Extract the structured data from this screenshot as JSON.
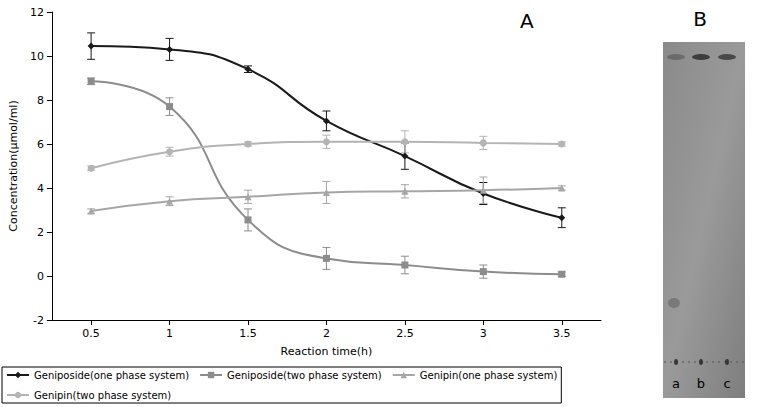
{
  "chart_data": {
    "type": "line",
    "title": "A",
    "x_label": "Reaction time(h)",
    "y_label": "Concentration(μmol/ml)",
    "categories": [
      "0.5",
      "1",
      "1.5",
      "2",
      "2.5",
      "3",
      "3.5"
    ],
    "ylim": [
      -2,
      12
    ],
    "yticks": [
      -2,
      0,
      2,
      4,
      6,
      8,
      10,
      12
    ],
    "grid": false,
    "legend": "bottom",
    "line_style": "smooth",
    "series": [
      {
        "name": "Geniposide(one phase system)",
        "color": "#1a1a1a",
        "marker": "diamond",
        "values": [
          10.45,
          10.3,
          9.4,
          7.05,
          5.45,
          3.75,
          2.65
        ],
        "errors": [
          0.6,
          0.5,
          0.15,
          0.45,
          0.6,
          0.5,
          0.45
        ]
      },
      {
        "name": "Geniposide(two phase system)",
        "color": "#8c8c8c",
        "marker": "square",
        "values": [
          8.85,
          7.7,
          2.55,
          0.8,
          0.5,
          0.2,
          0.08
        ],
        "errors": [
          0.15,
          0.4,
          0.5,
          0.5,
          0.4,
          0.3,
          0.1
        ]
      },
      {
        "name": "Genipin(one phase system)",
        "color": "#a6a6a6",
        "marker": "triangle",
        "values": [
          2.95,
          3.4,
          3.6,
          3.8,
          3.85,
          3.9,
          4.0
        ],
        "errors": [
          0.1,
          0.2,
          0.3,
          0.5,
          0.3,
          0.6,
          0.1
        ]
      },
      {
        "name": "Genipin(two phase system)",
        "color": "#b4b4b4",
        "marker": "circle",
        "values": [
          4.9,
          5.65,
          6.0,
          6.1,
          6.1,
          6.05,
          6.0
        ],
        "errors": [
          0.1,
          0.2,
          0.1,
          0.3,
          0.5,
          0.3,
          0.1
        ]
      }
    ]
  },
  "image": {
    "label": "B",
    "lanes": [
      "a",
      "b",
      "c"
    ]
  }
}
